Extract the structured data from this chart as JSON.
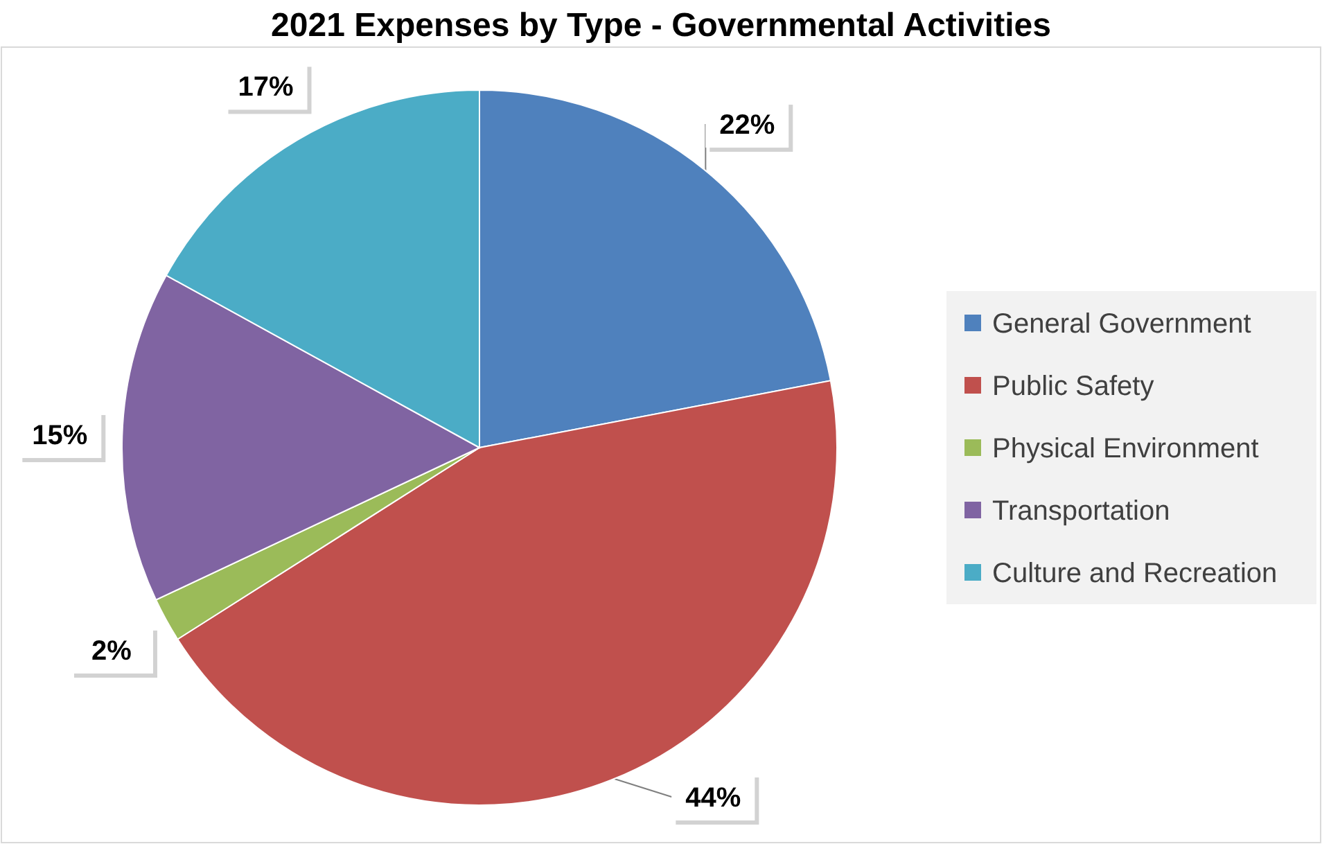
{
  "chart_data": {
    "type": "pie",
    "title": "2021 Expenses by Type - Governmental Activities",
    "categories": [
      "General Government",
      "Public Safety",
      "Physical Environment",
      "Transportation",
      "Culture and Recreation"
    ],
    "values": [
      22,
      44,
      2,
      15,
      17
    ],
    "colors": [
      "#4f81bd",
      "#c0504d",
      "#9bbb59",
      "#8064a2",
      "#4bacc6"
    ],
    "value_labels": [
      "22%",
      "44%",
      "2%",
      "15%",
      "17%"
    ],
    "legend": "right"
  }
}
